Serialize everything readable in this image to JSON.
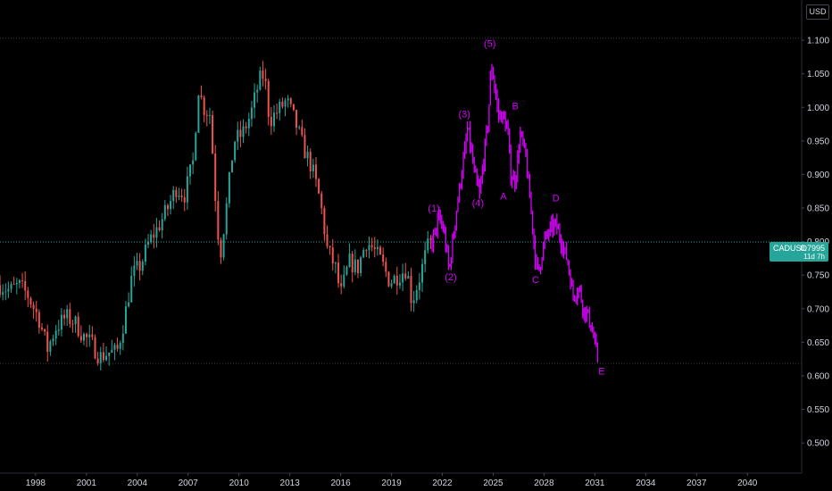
{
  "header": {
    "currency": "USD"
  },
  "price_tag": {
    "symbol": "CADUSD",
    "price": "0.7995",
    "countdown": "11d 7h"
  },
  "colors": {
    "background": "#000000",
    "up_candle": "#26a69a",
    "down_candle": "#ef5350",
    "projection": "#d500f9",
    "axis_text": "#d1d4dc",
    "dotted_line": "#3a3e47",
    "current_price_line": "#26a69a"
  },
  "chart_data": {
    "type": "line",
    "title": "",
    "xlabel": "",
    "ylabel": "",
    "ylim": [
      0.455,
      1.16
    ],
    "xlim": [
      1995.9,
      2043.2
    ],
    "grid": false,
    "legend": "none",
    "y_scale": "linear",
    "y_ticks": [
      "1.100",
      "1.050",
      "1.000",
      "0.950",
      "0.900",
      "0.850",
      "0.800",
      "0.750",
      "0.700",
      "0.650",
      "0.600",
      "0.550",
      "0.500"
    ],
    "x_ticks": [
      "1998",
      "2001",
      "2004",
      "2007",
      "2010",
      "2013",
      "2016",
      "2019",
      "2022",
      "2025",
      "2028",
      "2031",
      "2034",
      "2037",
      "2040"
    ],
    "horizontal_lines": [
      1.103,
      0.7995,
      0.6185
    ],
    "series": [
      {
        "style": "candles",
        "points": [
          [
            1995.9,
            0.735
          ],
          [
            1996.5,
            0.727
          ],
          [
            1997.0,
            0.735
          ],
          [
            1997.5,
            0.722
          ],
          [
            1998.2,
            0.685
          ],
          [
            1998.7,
            0.64
          ],
          [
            1999.2,
            0.672
          ],
          [
            1999.8,
            0.688
          ],
          [
            2000.3,
            0.68
          ],
          [
            2000.8,
            0.66
          ],
          [
            2001.3,
            0.648
          ],
          [
            2001.8,
            0.628
          ],
          [
            2002.3,
            0.635
          ],
          [
            2002.8,
            0.635
          ],
          [
            2003.2,
            0.68
          ],
          [
            2003.7,
            0.75
          ],
          [
            2004.2,
            0.765
          ],
          [
            2004.7,
            0.8
          ],
          [
            2005.2,
            0.82
          ],
          [
            2005.8,
            0.85
          ],
          [
            2006.3,
            0.88
          ],
          [
            2006.8,
            0.87
          ],
          [
            2007.3,
            0.92
          ],
          [
            2007.6,
            1.03
          ],
          [
            2007.9,
            1.0
          ],
          [
            2008.3,
            0.99
          ],
          [
            2008.7,
            0.83
          ],
          [
            2008.9,
            0.78
          ],
          [
            2009.3,
            0.86
          ],
          [
            2009.7,
            0.95
          ],
          [
            2010.2,
            0.96
          ],
          [
            2010.7,
            0.99
          ],
          [
            2011.2,
            1.04
          ],
          [
            2011.5,
            1.05
          ],
          [
            2011.8,
            0.98
          ],
          [
            2012.3,
            0.995
          ],
          [
            2012.8,
            1.01
          ],
          [
            2013.3,
            0.98
          ],
          [
            2013.8,
            0.94
          ],
          [
            2014.3,
            0.91
          ],
          [
            2014.8,
            0.86
          ],
          [
            2015.2,
            0.79
          ],
          [
            2015.7,
            0.76
          ],
          [
            2016.0,
            0.72
          ],
          [
            2016.5,
            0.77
          ],
          [
            2017.0,
            0.76
          ],
          [
            2017.5,
            0.8
          ],
          [
            2017.9,
            0.79
          ],
          [
            2018.4,
            0.77
          ],
          [
            2018.9,
            0.74
          ],
          [
            2019.4,
            0.75
          ],
          [
            2019.9,
            0.76
          ],
          [
            2020.2,
            0.71
          ],
          [
            2020.7,
            0.75
          ],
          [
            2021.1,
            0.79
          ],
          [
            2021.4,
            0.7995
          ]
        ]
      },
      {
        "style": "projection",
        "points": [
          [
            2021.4,
            0.7995
          ],
          [
            2021.8,
            0.835
          ],
          [
            2022.1,
            0.815
          ],
          [
            2022.4,
            0.755
          ],
          [
            2022.9,
            0.86
          ],
          [
            2023.3,
            0.93
          ],
          [
            2023.5,
            0.97
          ],
          [
            2023.9,
            0.9
          ],
          [
            2024.2,
            0.87
          ],
          [
            2024.7,
            0.98
          ],
          [
            2024.9,
            1.065
          ],
          [
            2025.3,
            0.99
          ],
          [
            2025.6,
            0.985
          ],
          [
            2025.9,
            0.96
          ],
          [
            2026.0,
            0.9
          ],
          [
            2026.3,
            0.89
          ],
          [
            2026.6,
            0.96
          ],
          [
            2026.9,
            0.93
          ],
          [
            2027.3,
            0.83
          ],
          [
            2027.5,
            0.77
          ],
          [
            2027.7,
            0.755
          ],
          [
            2028.0,
            0.8
          ],
          [
            2028.4,
            0.82
          ],
          [
            2028.7,
            0.825
          ],
          [
            2028.9,
            0.81
          ],
          [
            2029.4,
            0.77
          ],
          [
            2029.7,
            0.72
          ],
          [
            2030.1,
            0.73
          ],
          [
            2030.3,
            0.7
          ],
          [
            2030.6,
            0.69
          ],
          [
            2030.9,
            0.66
          ],
          [
            2031.2,
            0.62
          ]
        ]
      }
    ],
    "annotations": [
      {
        "text": "(1)",
        "x": 2021.5,
        "y": 0.845
      },
      {
        "text": "(2)",
        "x": 2022.5,
        "y": 0.742
      },
      {
        "text": "(3)",
        "x": 2023.3,
        "y": 0.985
      },
      {
        "text": "(4)",
        "x": 2024.1,
        "y": 0.853
      },
      {
        "text": "(5)",
        "x": 2024.8,
        "y": 1.09
      },
      {
        "text": "A",
        "x": 2025.6,
        "y": 0.863
      },
      {
        "text": "B",
        "x": 2026.3,
        "y": 0.997
      },
      {
        "text": "C",
        "x": 2027.5,
        "y": 0.738
      },
      {
        "text": "D",
        "x": 2028.7,
        "y": 0.86
      },
      {
        "text": "E",
        "x": 2031.4,
        "y": 0.602
      }
    ]
  }
}
